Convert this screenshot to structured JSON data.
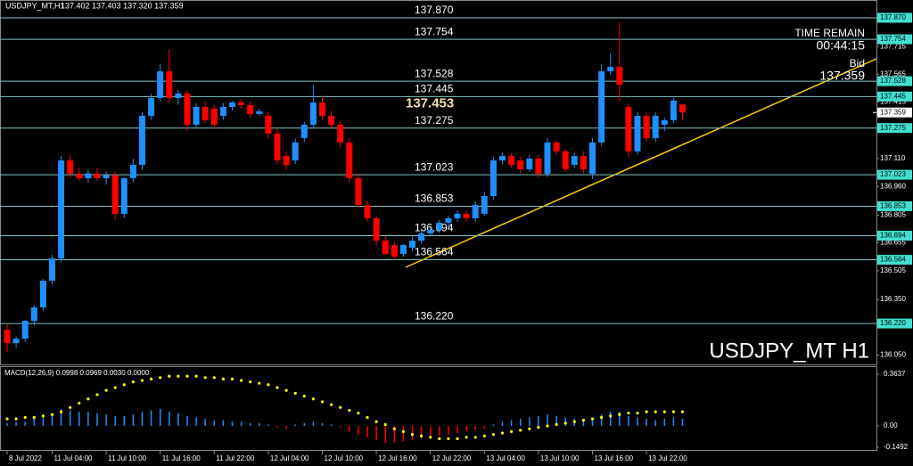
{
  "chart_data": {
    "type": "candlestick",
    "title": "USDJPY_MT,H1",
    "header_values": "137.402 137.403 137.320 137.359",
    "watermark": "USDJPY_MT H1",
    "info": {
      "time_label": "TIME REMAIN",
      "time": "00:44:15",
      "bid_label": "Bid",
      "bid": 137.359
    },
    "categories": [
      "8 Jul 2022",
      null,
      null,
      null,
      null,
      "11 Jul 04:00",
      null,
      null,
      null,
      null,
      null,
      "11 Jul 10:00",
      null,
      null,
      null,
      null,
      null,
      "11 Jul 16:00",
      null,
      null,
      null,
      null,
      null,
      "11 Jul 22:00",
      null,
      null,
      null,
      null,
      null,
      "12 Jul 04:00",
      null,
      null,
      null,
      null,
      null,
      "12 Jul 10:00",
      null,
      null,
      null,
      null,
      null,
      "12 Jul 16:00",
      null,
      null,
      null,
      null,
      null,
      "12 Jul 22:00",
      null,
      null,
      null,
      null,
      null,
      "13 Jul 04:00",
      null,
      null,
      null,
      null,
      null,
      "13 Jul 10:00",
      null,
      null,
      null,
      null,
      null,
      "13 Jul 16:00",
      null,
      null,
      null,
      null,
      null,
      "13 Jul 22:00",
      null,
      null,
      null,
      null
    ],
    "candles": {
      "up_color": "#1e90ff",
      "down_color": "#ff0000",
      "open": [
        136.186,
        136.114,
        136.138,
        136.234,
        136.307,
        136.451,
        136.571,
        137.1,
        137.028,
        137.004,
        137.03,
        137.004,
        137.02,
        136.812,
        137.004,
        137.076,
        137.341,
        137.437,
        137.581,
        137.437,
        137.461,
        137.293,
        137.389,
        137.38,
        137.341,
        137.389,
        137.413,
        137.399,
        137.351,
        137.341,
        137.245,
        137.124,
        137.1,
        137.221,
        137.293,
        137.413,
        137.341,
        137.293,
        137.197,
        137.004,
        136.86,
        136.788,
        136.667,
        136.643,
        136.595,
        136.629,
        136.667,
        136.706,
        136.725,
        136.764,
        136.788,
        136.812,
        136.788,
        136.812,
        136.908,
        137.1,
        137.124,
        137.1,
        137.052,
        137.11,
        137.028,
        137.197,
        137.149,
        137.076,
        137.124,
        137.028,
        137.197,
        137.581,
        137.605,
        137.389,
        137.149,
        137.341,
        137.221,
        137.293,
        137.317,
        137.402
      ],
      "high": [
        136.22,
        136.15,
        136.24,
        136.32,
        136.46,
        136.59,
        137.124,
        137.13,
        137.06,
        137.05,
        137.06,
        137.04,
        137.04,
        137.01,
        137.11,
        137.36,
        137.46,
        137.62,
        137.7,
        137.48,
        137.48,
        137.41,
        137.42,
        137.4,
        137.41,
        137.42,
        137.43,
        137.42,
        137.38,
        137.36,
        137.27,
        137.15,
        137.22,
        137.31,
        137.51,
        137.45,
        137.37,
        137.31,
        137.22,
        137.03,
        136.88,
        136.8,
        136.69,
        136.66,
        136.65,
        136.69,
        136.72,
        136.74,
        136.78,
        136.8,
        136.83,
        136.83,
        136.88,
        136.93,
        137.12,
        137.14,
        137.14,
        137.12,
        137.13,
        137.13,
        137.22,
        137.21,
        137.16,
        137.14,
        137.15,
        137.22,
        137.62,
        137.68,
        137.846,
        137.41,
        137.36,
        137.36,
        137.36,
        137.33,
        137.44,
        137.403
      ],
      "low": [
        136.066,
        136.09,
        136.12,
        136.21,
        136.29,
        136.43,
        136.55,
        137.01,
        136.99,
        136.98,
        136.99,
        136.97,
        136.78,
        136.79,
        136.98,
        137.05,
        137.32,
        137.42,
        137.41,
        137.4,
        137.26,
        137.27,
        137.3,
        137.27,
        137.32,
        137.37,
        137.38,
        137.33,
        137.34,
        137.22,
        137.08,
        137.05,
        137.08,
        137.2,
        137.27,
        137.32,
        137.27,
        137.17,
        136.98,
        136.84,
        136.77,
        136.64,
        136.59,
        136.56,
        136.58,
        136.61,
        136.65,
        136.69,
        136.71,
        136.74,
        136.77,
        136.77,
        136.77,
        136.8,
        136.89,
        137.08,
        137.06,
        137.03,
        137.04,
        137.01,
        137.01,
        137.13,
        137.04,
        137.06,
        137.03,
        137.0,
        137.18,
        137.56,
        137.42,
        137.12,
        137.13,
        137.2,
        137.2,
        137.26,
        137.3,
        137.32
      ],
      "close": [
        136.114,
        136.138,
        136.234,
        136.307,
        136.451,
        136.571,
        137.1,
        137.028,
        137.004,
        137.03,
        137.004,
        137.02,
        136.812,
        137.004,
        137.076,
        137.341,
        137.437,
        137.581,
        137.437,
        137.461,
        137.293,
        137.389,
        137.317,
        137.293,
        137.389,
        137.413,
        137.399,
        137.351,
        137.365,
        137.245,
        137.1,
        137.076,
        137.197,
        137.293,
        137.413,
        137.341,
        137.293,
        137.197,
        137.004,
        136.86,
        136.788,
        136.667,
        136.595,
        136.581,
        136.643,
        136.667,
        136.706,
        136.725,
        136.764,
        136.788,
        136.812,
        136.788,
        136.86,
        136.908,
        137.1,
        137.124,
        137.076,
        137.052,
        137.11,
        137.028,
        137.197,
        137.149,
        137.052,
        137.124,
        137.052,
        137.197,
        137.581,
        137.605,
        137.509,
        137.149,
        137.341,
        137.221,
        137.341,
        137.317,
        137.423,
        137.359
      ]
    },
    "ylim": [
      136.004,
      137.966
    ],
    "yticks": [
      137.715,
      137.565,
      137.415,
      {
        "value": 137.11,
        "label": "137.110"
      },
      {
        "value": 136.96,
        "label": "136.960"
      },
      136.805,
      136.655,
      136.505,
      {
        "value": 136.35,
        "label": "136.350"
      },
      {
        "value": 136.05,
        "label": "136.050"
      }
    ],
    "levels": [
      {
        "value": 137.87,
        "label": "137.870"
      },
      137.754,
      137.528,
      137.445,
      137.275,
      137.023,
      136.853,
      136.694,
      136.564,
      {
        "value": 136.22,
        "label": "136.220"
      }
    ],
    "level_color": "#7fc4c4",
    "price_label": 137.453,
    "current_price": 137.359,
    "macd": {
      "title": "MACD(12,26,9) 0.0998 0.0969 0.0030 0.0000",
      "ylim": [
        -0.169,
        0.414
      ],
      "yticks": [
        0.3637,
        {
          "value": 0,
          "label": "0.00"
        },
        -0.1492
      ],
      "up_color": "#1e90ff",
      "down_color": "#ff0000",
      "signal_color": "#ffff00",
      "histogram": [
        0.02,
        0.03,
        0.03,
        0.05,
        0.07,
        0.08,
        0.12,
        0.11,
        0.1,
        0.1,
        0.09,
        0.08,
        0.07,
        0.07,
        0.08,
        0.1,
        0.11,
        0.12,
        0.1,
        0.09,
        0.07,
        0.06,
        0.05,
        0.04,
        0.04,
        0.03,
        0.03,
        0.02,
        0.02,
        0.01,
        -0.01,
        -0.02,
        0.01,
        0.02,
        0.03,
        0.02,
        0.01,
        -0.01,
        -0.04,
        -0.06,
        -0.08,
        -0.1,
        -0.12,
        -0.12,
        -0.11,
        -0.1,
        -0.09,
        -0.08,
        -0.07,
        -0.06,
        -0.05,
        -0.04,
        -0.03,
        -0.02,
        0.01,
        0.03,
        0.04,
        0.05,
        0.06,
        0.07,
        0.08,
        0.07,
        0.06,
        0.05,
        0.05,
        0.06,
        0.08,
        0.1,
        0.1,
        0.07,
        0.06,
        0.05,
        0.04,
        0.05,
        0.06,
        0.05
      ],
      "signal": [
        0.05,
        0.05,
        0.06,
        0.06,
        0.07,
        0.08,
        0.1,
        0.13,
        0.16,
        0.19,
        0.22,
        0.25,
        0.27,
        0.29,
        0.31,
        0.32,
        0.33,
        0.34,
        0.35,
        0.35,
        0.35,
        0.35,
        0.34,
        0.34,
        0.33,
        0.33,
        0.32,
        0.31,
        0.3,
        0.29,
        0.27,
        0.25,
        0.23,
        0.21,
        0.19,
        0.17,
        0.15,
        0.13,
        0.11,
        0.09,
        0.06,
        0.03,
        0.01,
        -0.02,
        -0.04,
        -0.06,
        -0.07,
        -0.08,
        -0.09,
        -0.09,
        -0.09,
        -0.08,
        -0.08,
        -0.07,
        -0.06,
        -0.05,
        -0.04,
        -0.03,
        -0.02,
        -0.01,
        0.0,
        0.01,
        0.02,
        0.03,
        0.04,
        0.05,
        0.06,
        0.07,
        0.08,
        0.09,
        0.09,
        0.1,
        0.1,
        0.1,
        0.1,
        0.1
      ]
    }
  }
}
